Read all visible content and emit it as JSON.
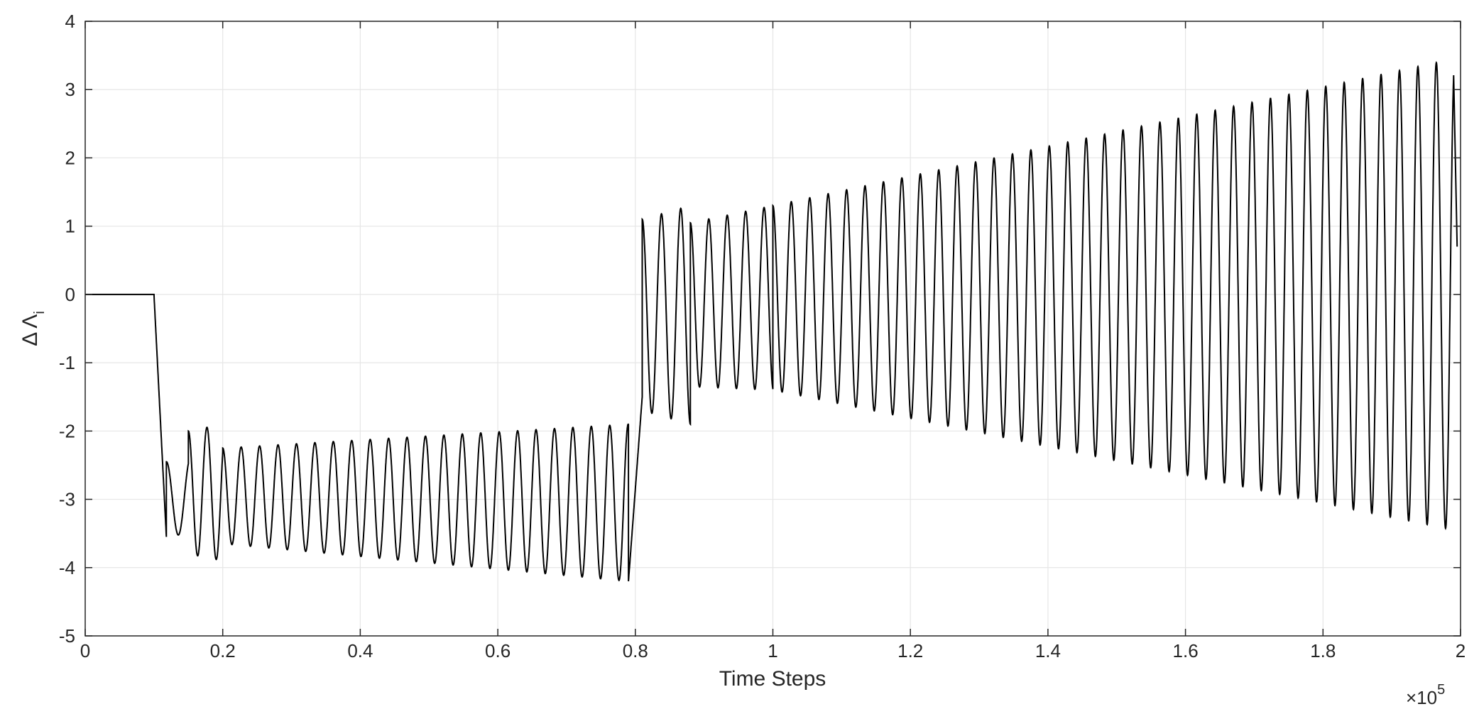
{
  "chart_data": {
    "type": "line",
    "title": "",
    "xlabel": "Time Steps",
    "ylabel": "Δ Λ",
    "ylabel_subscript": "i",
    "x_exponent_label": "×10",
    "x_exponent_power": "5",
    "xlim": [
      0,
      2
    ],
    "ylim": [
      -5,
      4
    ],
    "x_ticks": [
      0,
      0.2,
      0.4,
      0.6,
      0.8,
      1,
      1.2,
      1.4,
      1.6,
      1.8,
      2
    ],
    "x_tick_labels": [
      "0",
      "0.2",
      "0.4",
      "0.6",
      "0.8",
      "1",
      "1.2",
      "1.4",
      "1.6",
      "1.8",
      "2"
    ],
    "y_ticks": [
      -5,
      -4,
      -3,
      -2,
      -1,
      0,
      1,
      2,
      3,
      4
    ],
    "y_tick_labels": [
      "-5",
      "-4",
      "-3",
      "-2",
      "-1",
      "0",
      "1",
      "2",
      "3",
      "4"
    ],
    "grid": true,
    "line_color": "#000000",
    "grid_color": "#e6e6e6",
    "series": [
      {
        "segments": [
          {
            "x0": 0.0,
            "x1": 0.1,
            "center0": 0.0,
            "center1": 0.0,
            "amp0": 0.0,
            "amp1": 0.0,
            "period": 0.028
          },
          {
            "x0": 0.1,
            "x1": 0.118,
            "center0": 0.0,
            "center1": -3.55,
            "amp0": 0.0,
            "amp1": 0.0,
            "period": 0.028
          },
          {
            "x0": 0.118,
            "x1": 0.15,
            "center0": -3.0,
            "center1": -2.95,
            "amp0": 0.55,
            "amp1": 0.55,
            "period": 0.035
          },
          {
            "x0": 0.15,
            "x1": 0.2,
            "center0": -2.9,
            "center1": -2.9,
            "amp0": 0.9,
            "amp1": 1.0,
            "period": 0.027
          },
          {
            "x0": 0.2,
            "x1": 0.79,
            "center0": -2.95,
            "center1": -3.05,
            "amp0": 0.7,
            "amp1": 1.15,
            "period": 0.0268
          },
          {
            "x0": 0.79,
            "x1": 0.81,
            "center0": -4.2,
            "center1": -1.5,
            "amp0": 0.0,
            "amp1": 0.0,
            "period": 0.027
          },
          {
            "x0": 0.81,
            "x1": 0.88,
            "center0": -0.3,
            "center1": -0.3,
            "amp0": 1.4,
            "amp1": 1.6,
            "period": 0.028
          },
          {
            "x0": 0.88,
            "x1": 1.0,
            "center0": -0.15,
            "center1": -0.05,
            "amp0": 1.2,
            "amp1": 1.35,
            "period": 0.0268
          },
          {
            "x0": 1.0,
            "x1": 1.99,
            "center0": -0.05,
            "center1": 0.0,
            "amp0": 1.35,
            "amp1": 3.45,
            "period": 0.0268
          }
        ],
        "end_point": {
          "x": 1.995,
          "y": 0.7
        }
      }
    ]
  }
}
